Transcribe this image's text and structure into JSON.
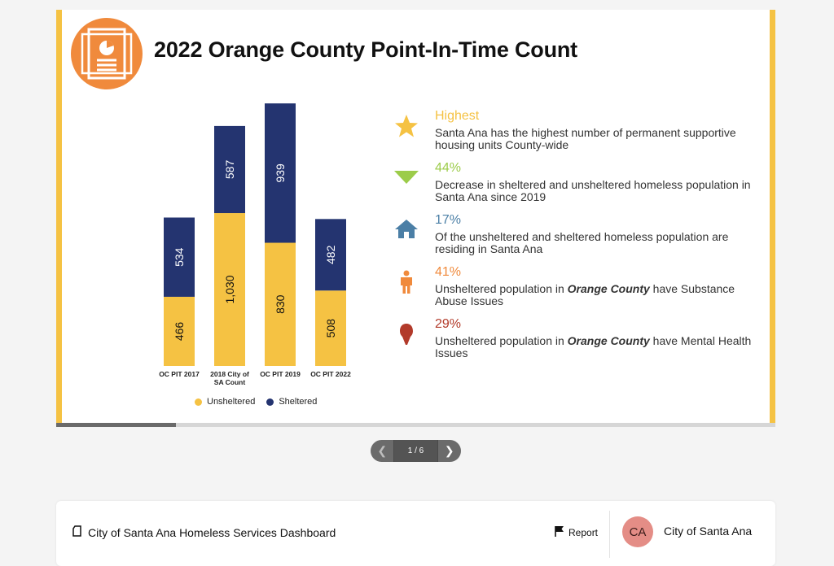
{
  "slide": {
    "title": "2022 Orange County Point-In-Time Count",
    "logo_icon": "report-document-icon",
    "accent_color": "#f5c243",
    "logo_color": "#f08a3c",
    "progress_fraction": 0.1667
  },
  "chart_data": {
    "type": "bar",
    "stacked": true,
    "categories": [
      [
        "OC PIT 2017"
      ],
      [
        "2018 City of",
        "SA Count"
      ],
      [
        "OC PIT 2019"
      ],
      [
        "OC PIT 2022"
      ]
    ],
    "series": [
      {
        "name": "Unsheltered",
        "color": "#f5c243",
        "values": [
          466,
          1030,
          830,
          508
        ],
        "labels": [
          "466",
          "1,030",
          "830",
          "508"
        ]
      },
      {
        "name": "Sheltered",
        "color": "#243470",
        "values": [
          534,
          587,
          939,
          482
        ],
        "labels": [
          "534",
          "587",
          "939",
          "482"
        ]
      }
    ],
    "legend_position": "bottom",
    "grid": false
  },
  "legend": {
    "unsheltered": "Unsheltered",
    "sheltered": "Sheltered"
  },
  "stats": [
    {
      "icon": "star-icon",
      "color": "#f5c243",
      "value": "Highest",
      "desc": "Santa Ana has the highest number of permanent supportive housing units County-wide"
    },
    {
      "icon": "triangle-down-icon",
      "color": "#9ccc4a",
      "value": "44%",
      "desc": "Decrease in sheltered and unsheltered homeless population in Santa Ana since 2019"
    },
    {
      "icon": "house-icon",
      "color": "#4b7fa6",
      "value": "17%",
      "desc": "Of the unsheltered and sheltered homeless population are residing in Santa Ana"
    },
    {
      "icon": "person-icon",
      "color": "#f08a3c",
      "value": "41%",
      "desc_pre": "Unsheltered population in ",
      "desc_em": "Orange County",
      "desc_post": " have Substance Abuse Issues"
    },
    {
      "icon": "head-profile-icon",
      "color": "#b23a2a",
      "value": "29%",
      "desc_pre": "Unsheltered population in ",
      "desc_em": "Orange County",
      "desc_post": " have Mental Health Issues"
    }
  ],
  "pager": {
    "count": "1 / 6",
    "prev_icon": "chevron-left-icon",
    "next_icon": "chevron-right-icon"
  },
  "footer": {
    "title": "City of Santa Ana Homeless Services Dashboard",
    "report": "Report",
    "avatar": "CA",
    "org": "City of Santa Ana"
  }
}
